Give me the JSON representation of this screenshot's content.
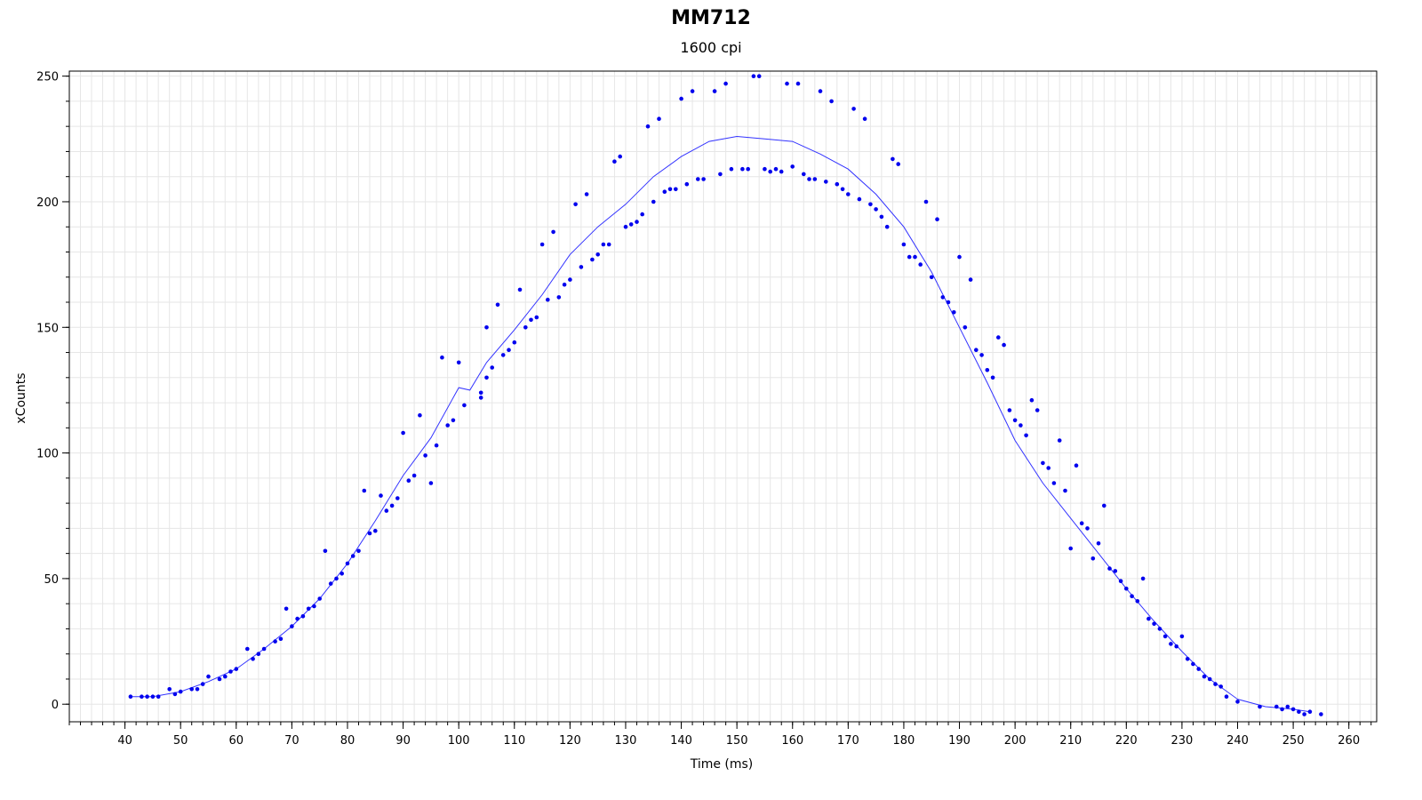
{
  "chart_data": {
    "type": "scatter",
    "title": "MM712",
    "subtitle": "1600 cpi",
    "xlabel": "Time (ms)",
    "ylabel": "xCounts",
    "xlim": [
      30,
      265
    ],
    "ylim": [
      -7,
      252
    ],
    "x_ticks": [
      40,
      50,
      60,
      70,
      80,
      90,
      100,
      110,
      120,
      130,
      140,
      150,
      160,
      170,
      180,
      190,
      200,
      210,
      220,
      230,
      240,
      250,
      260
    ],
    "y_ticks": [
      0,
      50,
      100,
      150,
      200,
      250
    ],
    "grid": true,
    "legend": "none",
    "colors": {
      "points": "#0000ee",
      "line": "#3333ff",
      "grid": "#e6e6e6",
      "axis": "#000000"
    },
    "series": [
      {
        "kind": "points",
        "points": [
          [
            41,
            3
          ],
          [
            43,
            3
          ],
          [
            44,
            3
          ],
          [
            45,
            3
          ],
          [
            46,
            3
          ],
          [
            48,
            6
          ],
          [
            49,
            4
          ],
          [
            50,
            5
          ],
          [
            52,
            6
          ],
          [
            53,
            6
          ],
          [
            54,
            8
          ],
          [
            55,
            11
          ],
          [
            57,
            10
          ],
          [
            58,
            11
          ],
          [
            59,
            13
          ],
          [
            60,
            14
          ],
          [
            62,
            22
          ],
          [
            63,
            18
          ],
          [
            64,
            20
          ],
          [
            65,
            22
          ],
          [
            67,
            25
          ],
          [
            68,
            26
          ],
          [
            69,
            38
          ],
          [
            70,
            31
          ],
          [
            71,
            34
          ],
          [
            72,
            35
          ],
          [
            73,
            38
          ],
          [
            74,
            39
          ],
          [
            75,
            42
          ],
          [
            76,
            61
          ],
          [
            77,
            48
          ],
          [
            78,
            50
          ],
          [
            79,
            52
          ],
          [
            80,
            56
          ],
          [
            81,
            59
          ],
          [
            82,
            61
          ],
          [
            83,
            85
          ],
          [
            84,
            68
          ],
          [
            85,
            69
          ],
          [
            86,
            83
          ],
          [
            87,
            77
          ],
          [
            88,
            79
          ],
          [
            89,
            82
          ],
          [
            90,
            108
          ],
          [
            91,
            89
          ],
          [
            92,
            91
          ],
          [
            93,
            115
          ],
          [
            94,
            99
          ],
          [
            95,
            88
          ],
          [
            96,
            103
          ],
          [
            97,
            138
          ],
          [
            98,
            111
          ],
          [
            99,
            113
          ],
          [
            100,
            136
          ],
          [
            101,
            119
          ],
          [
            104,
            124
          ],
          [
            104,
            122
          ],
          [
            105,
            150
          ],
          [
            105,
            130
          ],
          [
            106,
            134
          ],
          [
            107,
            159
          ],
          [
            108,
            139
          ],
          [
            109,
            141
          ],
          [
            110,
            144
          ],
          [
            111,
            165
          ],
          [
            112,
            150
          ],
          [
            113,
            153
          ],
          [
            114,
            154
          ],
          [
            115,
            183
          ],
          [
            116,
            161
          ],
          [
            117,
            188
          ],
          [
            118,
            162
          ],
          [
            119,
            167
          ],
          [
            120,
            169
          ],
          [
            121,
            199
          ],
          [
            122,
            174
          ],
          [
            123,
            203
          ],
          [
            124,
            177
          ],
          [
            125,
            179
          ],
          [
            126,
            183
          ],
          [
            127,
            183
          ],
          [
            128,
            216
          ],
          [
            129,
            218
          ],
          [
            130,
            190
          ],
          [
            131,
            191
          ],
          [
            132,
            192
          ],
          [
            133,
            195
          ],
          [
            134,
            230
          ],
          [
            135,
            200
          ],
          [
            136,
            233
          ],
          [
            137,
            204
          ],
          [
            138,
            205
          ],
          [
            139,
            205
          ],
          [
            140,
            241
          ],
          [
            141,
            207
          ],
          [
            142,
            244
          ],
          [
            143,
            209
          ],
          [
            144,
            209
          ],
          [
            146,
            244
          ],
          [
            147,
            211
          ],
          [
            148,
            247
          ],
          [
            149,
            213
          ],
          [
            151,
            213
          ],
          [
            152,
            213
          ],
          [
            153,
            250
          ],
          [
            154,
            250
          ],
          [
            155,
            213
          ],
          [
            156,
            212
          ],
          [
            157,
            213
          ],
          [
            158,
            212
          ],
          [
            159,
            247
          ],
          [
            160,
            214
          ],
          [
            161,
            247
          ],
          [
            162,
            211
          ],
          [
            163,
            209
          ],
          [
            164,
            209
          ],
          [
            165,
            244
          ],
          [
            166,
            208
          ],
          [
            167,
            240
          ],
          [
            168,
            207
          ],
          [
            169,
            205
          ],
          [
            170,
            203
          ],
          [
            171,
            237
          ],
          [
            172,
            201
          ],
          [
            173,
            233
          ],
          [
            174,
            199
          ],
          [
            175,
            197
          ],
          [
            176,
            194
          ],
          [
            177,
            190
          ],
          [
            178,
            217
          ],
          [
            179,
            215
          ],
          [
            180,
            183
          ],
          [
            181,
            178
          ],
          [
            182,
            178
          ],
          [
            183,
            175
          ],
          [
            184,
            200
          ],
          [
            185,
            170
          ],
          [
            186,
            193
          ],
          [
            187,
            162
          ],
          [
            188,
            160
          ],
          [
            189,
            156
          ],
          [
            190,
            178
          ],
          [
            191,
            150
          ],
          [
            192,
            169
          ],
          [
            193,
            141
          ],
          [
            194,
            139
          ],
          [
            195,
            133
          ],
          [
            196,
            130
          ],
          [
            197,
            146
          ],
          [
            198,
            143
          ],
          [
            199,
            117
          ],
          [
            200,
            113
          ],
          [
            201,
            111
          ],
          [
            202,
            107
          ],
          [
            203,
            121
          ],
          [
            204,
            117
          ],
          [
            205,
            96
          ],
          [
            206,
            94
          ],
          [
            207,
            88
          ],
          [
            208,
            105
          ],
          [
            209,
            85
          ],
          [
            210,
            62
          ],
          [
            211,
            95
          ],
          [
            212,
            72
          ],
          [
            213,
            70
          ],
          [
            214,
            58
          ],
          [
            215,
            64
          ],
          [
            216,
            79
          ],
          [
            217,
            54
          ],
          [
            218,
            53
          ],
          [
            219,
            49
          ],
          [
            220,
            46
          ],
          [
            221,
            43
          ],
          [
            222,
            41
          ],
          [
            223,
            50
          ],
          [
            224,
            34
          ],
          [
            225,
            32
          ],
          [
            226,
            30
          ],
          [
            227,
            27
          ],
          [
            228,
            24
          ],
          [
            229,
            23
          ],
          [
            230,
            27
          ],
          [
            231,
            18
          ],
          [
            232,
            16
          ],
          [
            233,
            14
          ],
          [
            234,
            11
          ],
          [
            235,
            10
          ],
          [
            236,
            8
          ],
          [
            237,
            7
          ],
          [
            238,
            3
          ],
          [
            240,
            1
          ],
          [
            244,
            -1
          ],
          [
            247,
            -1
          ],
          [
            248,
            -2
          ],
          [
            249,
            -1
          ],
          [
            250,
            -2
          ],
          [
            251,
            -3
          ],
          [
            252,
            -4
          ],
          [
            253,
            -3
          ],
          [
            255,
            -4
          ]
        ]
      },
      {
        "kind": "line",
        "points": [
          [
            41,
            3
          ],
          [
            45,
            3
          ],
          [
            50,
            5
          ],
          [
            55,
            9
          ],
          [
            60,
            14
          ],
          [
            65,
            22
          ],
          [
            70,
            31
          ],
          [
            75,
            42
          ],
          [
            80,
            56
          ],
          [
            85,
            73
          ],
          [
            90,
            91
          ],
          [
            95,
            106
          ],
          [
            100,
            126
          ],
          [
            102,
            125
          ],
          [
            105,
            136
          ],
          [
            110,
            149
          ],
          [
            115,
            163
          ],
          [
            120,
            179
          ],
          [
            125,
            190
          ],
          [
            130,
            199
          ],
          [
            135,
            210
          ],
          [
            140,
            218
          ],
          [
            145,
            224
          ],
          [
            150,
            226
          ],
          [
            155,
            225
          ],
          [
            160,
            224
          ],
          [
            165,
            219
          ],
          [
            170,
            213
          ],
          [
            175,
            203
          ],
          [
            180,
            190
          ],
          [
            185,
            172
          ],
          [
            190,
            150
          ],
          [
            195,
            128
          ],
          [
            200,
            105
          ],
          [
            205,
            88
          ],
          [
            210,
            74
          ],
          [
            215,
            60
          ],
          [
            220,
            46
          ],
          [
            225,
            33
          ],
          [
            230,
            21
          ],
          [
            235,
            10
          ],
          [
            240,
            2
          ],
          [
            245,
            -1
          ],
          [
            250,
            -2
          ],
          [
            253,
            -3
          ]
        ]
      }
    ]
  }
}
